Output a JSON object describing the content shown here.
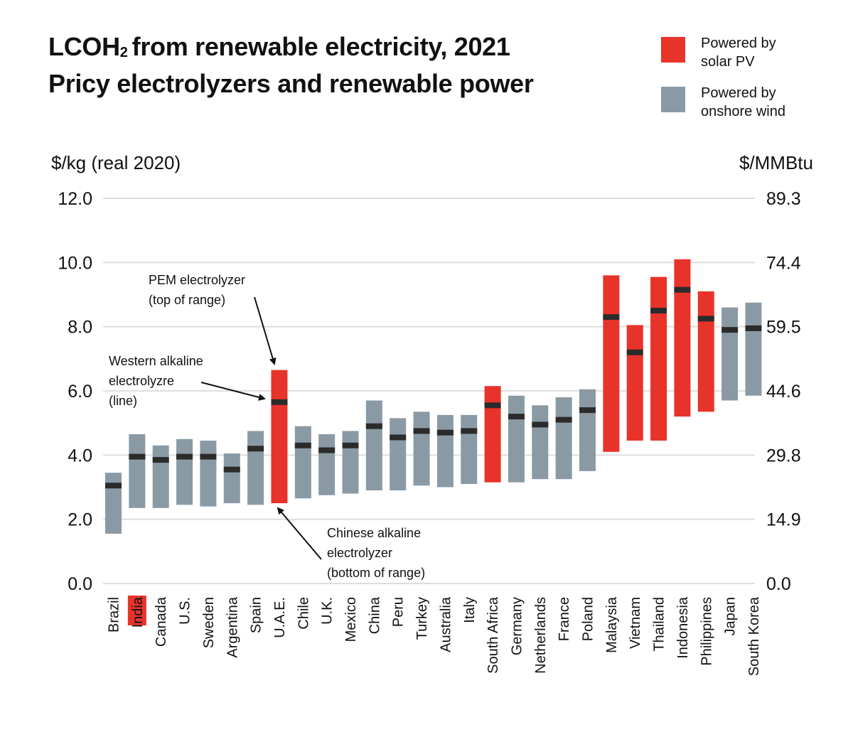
{
  "title": {
    "line1_prefix": "LCOH",
    "line1_sub": "2",
    "line1_suffix": "from renewable electricity, 2021",
    "line2": "Pricy electrolyzers and renewable power"
  },
  "legend": [
    {
      "label_line1": "Powered by",
      "label_line2": "solar PV",
      "color": "#e8332a"
    },
    {
      "label_line1": "Powered by",
      "label_line2": "onshore wind",
      "color": "#8a9aa5"
    }
  ],
  "units": {
    "left": "$/kg (real 2020)",
    "right": "$/MMBtu"
  },
  "chart_data": {
    "type": "bar",
    "subtype": "floating-range-with-marker",
    "ylim": [
      0,
      12
    ],
    "y_ticks_left": [
      "0.0",
      "2.0",
      "4.0",
      "6.0",
      "8.0",
      "10.0",
      "12.0"
    ],
    "y_ticks_right": [
      "0.0",
      "14.9",
      "29.8",
      "44.6",
      "59.5",
      "74.4",
      "89.3"
    ],
    "grid": true,
    "highlighted_category": "India",
    "categories": [
      "Brazil",
      "India",
      "Canada",
      "U.S.",
      "Sweden",
      "Argentina",
      "Spain",
      "U.A.E.",
      "Chile",
      "U.K.",
      "Mexico",
      "China",
      "Peru",
      "Turkey",
      "Australia",
      "Italy",
      "South Africa",
      "Germany",
      "Netherlands",
      "France",
      "Poland",
      "Malaysia",
      "Vietnam",
      "Thailand",
      "Indonesia",
      "Philippines",
      "Japan",
      "South Korea"
    ],
    "power_source": [
      "wind",
      "wind",
      "wind",
      "wind",
      "wind",
      "wind",
      "wind",
      "solar",
      "wind",
      "wind",
      "wind",
      "wind",
      "wind",
      "wind",
      "wind",
      "wind",
      "solar",
      "wind",
      "wind",
      "wind",
      "wind",
      "solar",
      "solar",
      "solar",
      "solar",
      "solar",
      "wind",
      "wind"
    ],
    "series": [
      {
        "name": "Chinese alkaline electrolyzer (bottom of range)",
        "values": [
          1.55,
          2.35,
          2.35,
          2.45,
          2.4,
          2.5,
          2.45,
          2.5,
          2.65,
          2.75,
          2.8,
          2.9,
          2.9,
          3.05,
          3.0,
          3.1,
          3.15,
          3.15,
          3.25,
          3.25,
          3.5,
          4.1,
          4.45,
          4.45,
          5.2,
          5.35,
          5.7,
          5.85
        ]
      },
      {
        "name": "Western alkaline electrolyzre (line)",
        "values": [
          3.05,
          3.95,
          3.85,
          3.95,
          3.95,
          3.55,
          4.2,
          5.65,
          4.3,
          4.15,
          4.3,
          4.9,
          4.55,
          4.75,
          4.7,
          4.75,
          5.55,
          5.2,
          4.95,
          5.1,
          5.4,
          8.3,
          7.2,
          8.5,
          9.15,
          8.25,
          7.9,
          7.95
        ]
      },
      {
        "name": "PEM electrolyzer (top of range)",
        "values": [
          3.45,
          4.65,
          4.3,
          4.5,
          4.45,
          4.05,
          4.75,
          6.65,
          4.9,
          4.65,
          4.75,
          5.7,
          5.15,
          5.35,
          5.25,
          5.25,
          6.15,
          5.85,
          5.55,
          5.8,
          6.05,
          9.6,
          8.05,
          9.55,
          10.1,
          9.1,
          8.6,
          8.75
        ]
      }
    ],
    "annotations": [
      {
        "lines": [
          "PEM electrolyzer",
          "(top of range)"
        ]
      },
      {
        "lines": [
          "Western alkaline",
          "electrolyzre",
          "(line)"
        ]
      },
      {
        "lines": [
          "Chinese alkaline",
          "electrolyzer",
          "(bottom of range)"
        ]
      }
    ],
    "colors": {
      "solar": "#e8332a",
      "wind": "#8a9aa5",
      "marker": "#2b2b2b",
      "grid": "#dedede",
      "highlight_label_bg": "#e8332a"
    }
  }
}
